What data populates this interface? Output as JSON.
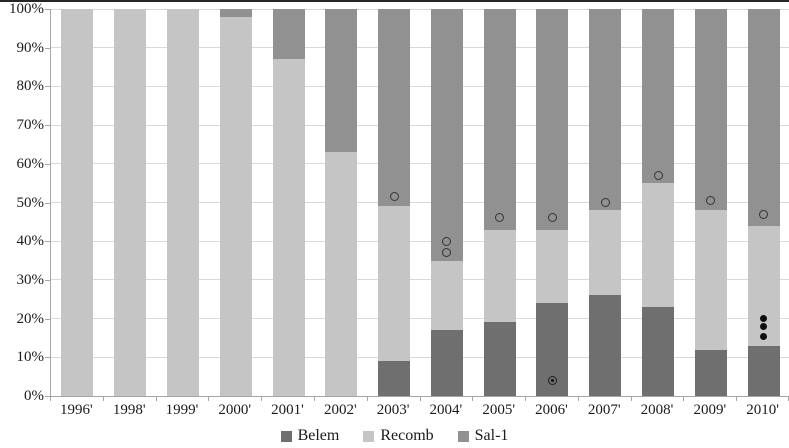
{
  "chart_data": {
    "type": "bar",
    "subtype": "stacked-100-percent-column",
    "title": "",
    "xlabel": "",
    "ylabel": "",
    "grid": true,
    "categories": [
      "1996'",
      "1998'",
      "1999'",
      "2000'",
      "2001'",
      "2002'",
      "2003'",
      "2004'",
      "2005'",
      "2006'",
      "2007'",
      "2008'",
      "2009'",
      "2010'"
    ],
    "series": [
      {
        "name": "Belem",
        "color": "#6f6f6f",
        "values": [
          0,
          0,
          0,
          0,
          0,
          0,
          9,
          17,
          19,
          24,
          26,
          23,
          12,
          13
        ]
      },
      {
        "name": "Recomb",
        "color": "#c5c5c5",
        "values": [
          100,
          100,
          100,
          98,
          87,
          63,
          40,
          18,
          24,
          19,
          22,
          32,
          36,
          31
        ]
      },
      {
        "name": "Sal-1",
        "color": "#919191",
        "values": [
          0,
          0,
          0,
          2,
          13,
          37,
          51,
          65,
          57,
          57,
          52,
          45,
          52,
          56
        ]
      }
    ],
    "markers": {
      "open_circles": [
        {
          "category": "2003'",
          "value": 51.5
        },
        {
          "category": "2004'",
          "value": 40
        },
        {
          "category": "2004'",
          "value": 37
        },
        {
          "category": "2005'",
          "value": 46
        },
        {
          "category": "2006'",
          "value": 46
        },
        {
          "category": "2007'",
          "value": 50
        },
        {
          "category": "2008'",
          "value": 57
        },
        {
          "category": "2009'",
          "value": 50.5
        },
        {
          "category": "2010'",
          "value": 47
        }
      ],
      "filled_circles": [
        {
          "category": "2010'",
          "value": 20
        },
        {
          "category": "2010'",
          "value": 18
        },
        {
          "category": "2010'",
          "value": 15.5
        }
      ],
      "circled_dots": [
        {
          "category": "2006'",
          "value": 4
        }
      ]
    },
    "y_axis": {
      "min": 0,
      "max": 100,
      "ticks": [
        "0%",
        "10%",
        "20%",
        "30%",
        "40%",
        "50%",
        "60%",
        "70%",
        "80%",
        "90%",
        "100%"
      ]
    },
    "legend": {
      "position": "bottom",
      "items": [
        "Belem",
        "Recomb",
        "Sal-1"
      ]
    }
  }
}
